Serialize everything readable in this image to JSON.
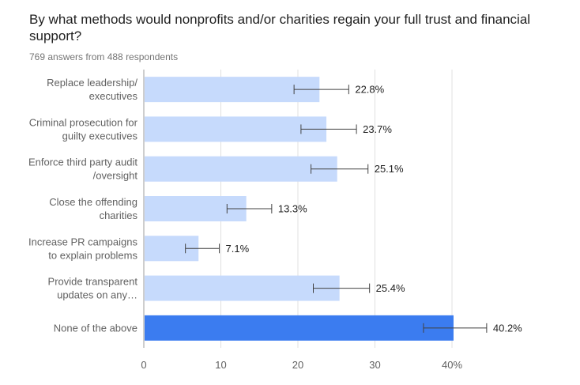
{
  "chart_data": {
    "type": "bar",
    "orientation": "horizontal",
    "title": "By what methods would nonprofits and/or charities regain your full trust and financial support?",
    "subtitle": "769 answers from 488 respondents",
    "categories": [
      [
        "Replace leadership/",
        "executives"
      ],
      [
        "Criminal prosecution for",
        "guilty executives"
      ],
      [
        "Enforce third party audit",
        "/oversight"
      ],
      [
        "Close the offending",
        "charities"
      ],
      [
        "Increase PR campaigns",
        "to explain problems"
      ],
      [
        "Provide transparent",
        "updates on any…"
      ],
      [
        "None of the above"
      ]
    ],
    "values": [
      22.8,
      23.7,
      25.1,
      13.3,
      7.1,
      25.4,
      40.2
    ],
    "value_labels": [
      "22.8%",
      "23.7%",
      "25.1%",
      "13.3%",
      "7.1%",
      "25.4%",
      "40.2%"
    ],
    "error_bars": [
      [
        19.5,
        26.6
      ],
      [
        20.4,
        27.6
      ],
      [
        21.7,
        29.1
      ],
      [
        10.8,
        16.6
      ],
      [
        5.4,
        9.8
      ],
      [
        22.0,
        29.3
      ],
      [
        36.3,
        44.5
      ]
    ],
    "highlight_index": 6,
    "xlim": [
      0,
      40
    ],
    "xticks": [
      "0",
      "10",
      "20",
      "30",
      "40%"
    ],
    "grid": true,
    "colors": {
      "bar": "#c6dafc",
      "highlight": "#3b7cf0",
      "grid": "#e0e0e0",
      "axis": "#9e9e9e",
      "error": "#424242"
    }
  }
}
